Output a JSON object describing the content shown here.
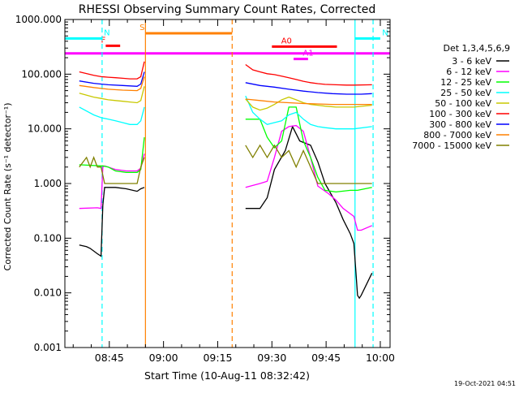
{
  "chart_data": {
    "type": "line",
    "title": "RHESSI Observing Summary Count Rates, Corrected",
    "xlabel": "Start Time (10-Aug-11 08:32:42)",
    "ylabel": "Corrected Count Rate (s⁻¹ detector⁻¹)",
    "ylabel_clipped": "Corrected Count Rate (s⁻¹ detector⁻¹)",
    "yscale": "log",
    "xlim_minutes": [
      0,
      90
    ],
    "ylim": [
      0.001,
      1000
    ],
    "x_ticks": [
      {
        "label": "08:45",
        "min": 12.3
      },
      {
        "label": "09:00",
        "min": 27.3
      },
      {
        "label": "09:15",
        "min": 42.3
      },
      {
        "label": "09:30",
        "min": 57.3
      },
      {
        "label": "09:45",
        "min": 72.3
      },
      {
        "label": "10:00",
        "min": 87.3
      }
    ],
    "y_ticks": [
      "0.001",
      "0.010",
      "0.100",
      "1.000",
      "10.000",
      "100.000",
      "1000.000"
    ],
    "legend_title": "Det 1,3,4,5,6,9",
    "legend_position": "right",
    "grid": false,
    "series": [
      {
        "name": "3 - 6 keV",
        "color": "#000000",
        "x": [
          4,
          6,
          7,
          9,
          10,
          10.5,
          11,
          14,
          17,
          20,
          21,
          22,
          50,
          54,
          56,
          58,
          61,
          63,
          65,
          68,
          70,
          72,
          75,
          77,
          79,
          80,
          81,
          81.5,
          82,
          85
        ],
        "y": [
          0.075,
          0.07,
          0.065,
          0.052,
          0.047,
          0.4,
          0.85,
          0.85,
          0.8,
          0.72,
          0.8,
          0.85,
          0.35,
          0.35,
          0.55,
          1.8,
          4,
          11,
          6,
          5,
          2.5,
          1,
          0.45,
          0.22,
          0.12,
          0.08,
          0.009,
          0.008,
          0.009,
          0.023
        ]
      },
      {
        "name": "6 - 12 keV",
        "color": "#ff00ff",
        "x": [
          4,
          9,
          10,
          10.5,
          11,
          14,
          17,
          20,
          21,
          22,
          50,
          54,
          56,
          58,
          60,
          62,
          64,
          66,
          68,
          70,
          73,
          75,
          77,
          80,
          81,
          82,
          85
        ],
        "y": [
          0.35,
          0.36,
          0.35,
          2,
          2.1,
          1.8,
          1.7,
          1.7,
          1.9,
          3.5,
          0.85,
          1,
          1.1,
          3,
          9,
          11,
          11.5,
          9,
          3,
          0.9,
          0.65,
          0.5,
          0.35,
          0.25,
          0.14,
          0.14,
          0.17
        ]
      },
      {
        "name": "12 - 25 keV",
        "color": "#00ff00",
        "x": [
          4,
          10,
          10.5,
          12,
          14,
          17,
          20,
          21,
          22,
          50,
          52,
          54,
          56,
          58,
          60,
          62,
          64,
          66,
          68,
          70,
          72,
          75,
          79,
          80,
          81,
          85
        ],
        "y": [
          2.2,
          2.1,
          2.1,
          2,
          1.7,
          1.6,
          1.6,
          1.8,
          7,
          15,
          15,
          15,
          7,
          4.5,
          6,
          25,
          25,
          6,
          3,
          1.3,
          0.75,
          0.7,
          0.75,
          0.75,
          0.75,
          0.85
        ]
      },
      {
        "name": "25 - 50 keV",
        "color": "#00ffff",
        "x": [
          4,
          8,
          10,
          12,
          14,
          16,
          18,
          20,
          21,
          22,
          50,
          52,
          54,
          56,
          58,
          60,
          62,
          64,
          66,
          68,
          70,
          72,
          75,
          78,
          80,
          85
        ],
        "y": [
          25,
          18,
          16,
          15,
          14,
          13,
          12,
          12,
          14,
          25,
          40,
          20,
          15,
          12,
          13,
          14,
          18,
          20,
          15,
          12,
          11,
          10.5,
          10,
          10,
          10,
          11
        ]
      },
      {
        "name": "50 - 100 keV",
        "color": "#c8c800",
        "x": [
          4,
          8,
          10,
          12,
          14,
          16,
          18,
          20,
          21,
          22,
          50,
          52,
          54,
          56,
          58,
          60,
          62,
          64,
          66,
          68,
          70,
          72,
          75,
          78,
          80,
          85
        ],
        "y": [
          45,
          38,
          36,
          34,
          33,
          32,
          31,
          30,
          33,
          60,
          35,
          25,
          22,
          24,
          28,
          34,
          38,
          34,
          30,
          28,
          27,
          26,
          25,
          25,
          25,
          27
        ]
      },
      {
        "name": "100 - 300 keV",
        "color": "#ff0000",
        "x": [
          4,
          8,
          10,
          12,
          14,
          16,
          18,
          20,
          21,
          22,
          50,
          52,
          54,
          56,
          58,
          60,
          62,
          64,
          66,
          68,
          70,
          72,
          75,
          78,
          80,
          85
        ],
        "y": [
          110,
          95,
          90,
          88,
          86,
          84,
          82,
          82,
          90,
          170,
          150,
          120,
          110,
          102,
          98,
          92,
          86,
          80,
          74,
          70,
          67,
          65,
          64,
          63,
          63,
          64
        ]
      },
      {
        "name": "300 - 800 keV",
        "color": "#0000ff",
        "x": [
          4,
          8,
          12,
          16,
          20,
          21,
          22,
          50,
          54,
          58,
          62,
          66,
          70,
          74,
          78,
          82,
          85
        ],
        "y": [
          75,
          68,
          64,
          62,
          60,
          66,
          110,
          70,
          62,
          58,
          53,
          49,
          46,
          44,
          43,
          43,
          44
        ]
      },
      {
        "name": "800 - 7000 keV",
        "color": "#ff8000",
        "x": [
          4,
          8,
          12,
          16,
          20,
          21,
          22,
          50,
          54,
          58,
          62,
          66,
          70,
          74,
          78,
          82,
          85
        ],
        "y": [
          62,
          57,
          53,
          51,
          50,
          55,
          90,
          35,
          33,
          31,
          30,
          29,
          28.5,
          28,
          28,
          28,
          28
        ]
      },
      {
        "name": "7000 - 15000 keV",
        "color": "#808000",
        "x": [
          4,
          6,
          7,
          8,
          9,
          10,
          11,
          12,
          20,
          21,
          22,
          50,
          52,
          54,
          56,
          58,
          60,
          62,
          64,
          66,
          68,
          70,
          75,
          80,
          85
        ],
        "y": [
          2,
          3,
          2,
          3,
          2,
          2,
          1,
          1,
          1,
          2,
          3,
          5,
          3,
          5,
          3,
          5,
          3,
          4,
          2,
          4,
          2,
          1,
          1,
          1,
          1
        ]
      }
    ],
    "vlines": [
      {
        "min": 10.3,
        "color": "#00ffff",
        "style": "dashed"
      },
      {
        "min": 22.3,
        "color": "#ff8000",
        "style": "solid"
      },
      {
        "min": 46.3,
        "color": "#ff8000",
        "style": "dashed"
      },
      {
        "min": 80.3,
        "color": "#00ffff",
        "style": "solid"
      },
      {
        "min": 85.3,
        "color": "#00ffff",
        "style": "dashed"
      }
    ],
    "flag_bars": [
      {
        "label": "N",
        "color": "#00ffff",
        "from": 0,
        "to": 10.3,
        "level": 450
      },
      {
        "label": "N",
        "color": "#00ffff",
        "from": 80.3,
        "to": 87.3,
        "level": 450
      },
      {
        "label": "F",
        "color": "#ff0000",
        "from": 11.3,
        "to": 15.3,
        "level": 330
      },
      {
        "label": "S",
        "color": "#ff8000",
        "from": 22.3,
        "to": 46.3,
        "level": 560
      },
      {
        "label": "",
        "color": "#ff00ff",
        "from": 0,
        "to": 90,
        "level": 240
      },
      {
        "label": "A0",
        "color": "#ff0000",
        "from": 57.3,
        "to": 75.3,
        "level": 320
      },
      {
        "label": "A1",
        "color": "#ff00ff",
        "from": 63.3,
        "to": 67.3,
        "level": 190
      }
    ],
    "footer_date": "19-Oct-2021 04:51"
  }
}
